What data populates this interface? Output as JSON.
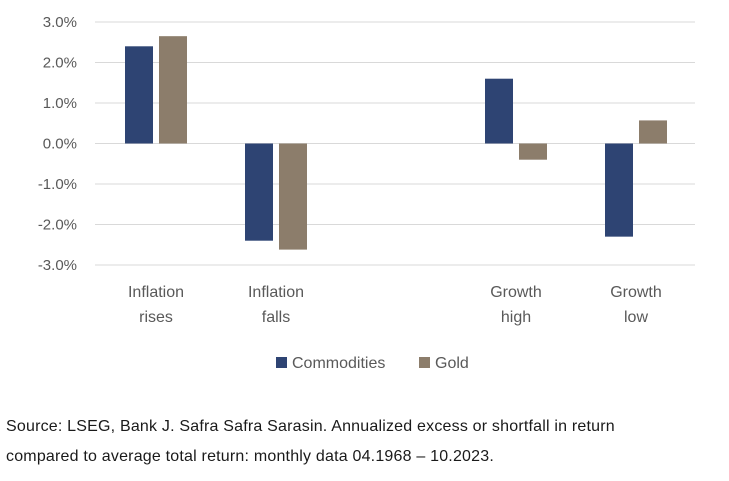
{
  "chart_data": {
    "type": "bar",
    "groups": [
      {
        "lines": [
          "Inflation",
          "rises"
        ],
        "values": [
          2.4,
          2.65
        ]
      },
      {
        "lines": [
          "Inflation",
          "falls"
        ],
        "values": [
          -2.4,
          -2.62
        ]
      },
      {
        "lines": [
          "Growth",
          "high"
        ],
        "values": [
          1.6,
          -0.4
        ]
      },
      {
        "lines": [
          "Growth",
          "low"
        ],
        "values": [
          -2.3,
          0.57
        ]
      }
    ],
    "series": [
      {
        "name": "Commodities",
        "color": "#2E4473"
      },
      {
        "name": "Gold",
        "color": "#8C7D6B"
      }
    ],
    "ylim": [
      -3.0,
      3.0
    ],
    "yticks": [
      3.0,
      2.0,
      1.0,
      0.0,
      -1.0,
      -2.0,
      -3.0
    ],
    "ytick_labels": [
      "3.0%",
      "2.0%",
      "1.0%",
      "0.0%",
      "-1.0%",
      "-2.0%",
      "-3.0%"
    ],
    "grid": true,
    "legend_position": "bottom-center"
  },
  "source": {
    "line1": "Source: LSEG, Bank J. Safra Safra Sarasin. Annualized excess or shortfall in return",
    "line2": "compared to average total return: monthly data 04.1968 – 10.2023."
  }
}
